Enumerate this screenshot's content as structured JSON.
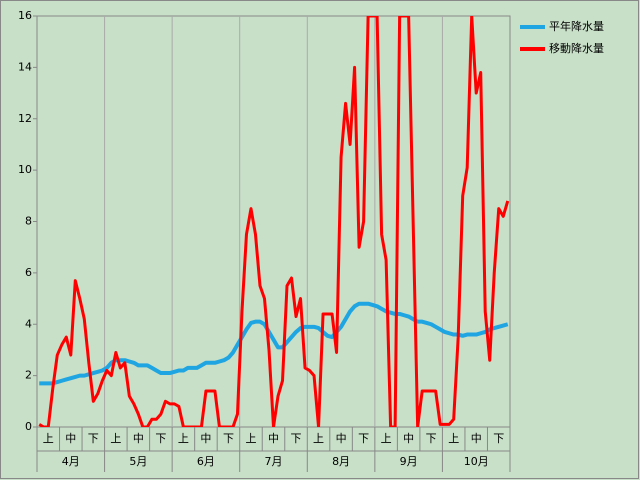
{
  "chart_data": {
    "type": "line",
    "categories": [
      null,
      null,
      "上",
      null,
      null,
      null,
      null,
      "中",
      null,
      null,
      null,
      null,
      "下",
      null,
      null,
      null,
      null,
      "上",
      null,
      null,
      null,
      null,
      "中",
      null,
      null,
      null,
      null,
      "下",
      null,
      null,
      null,
      null,
      "上",
      null,
      null,
      null,
      null,
      "中",
      null,
      null,
      null,
      null,
      "下",
      null,
      null,
      null,
      null,
      "上",
      null,
      null,
      null,
      null,
      "中",
      null,
      null,
      null,
      null,
      "下",
      null,
      null,
      null,
      null,
      "上",
      null,
      null,
      null,
      null,
      "中",
      null,
      null,
      null,
      null,
      "下",
      null,
      null,
      null,
      null,
      "上",
      null,
      null,
      null,
      null,
      "中",
      null,
      null,
      null,
      null,
      "下",
      null,
      null,
      null,
      null,
      "上",
      null,
      null,
      null,
      null,
      "中",
      null,
      null,
      null,
      null,
      "下",
      null,
      null
    ],
    "months": [
      "4月",
      "5月",
      "6月",
      "7月",
      "8月",
      "9月",
      "10月"
    ],
    "series": [
      {
        "name": "平年降水量",
        "color": "#1ea5e2",
        "values": [
          1.7,
          1.7,
          1.7,
          1.7,
          1.75,
          1.8,
          1.85,
          1.9,
          1.95,
          2.0,
          2.0,
          2.05,
          2.1,
          2.15,
          2.2,
          2.3,
          2.5,
          2.6,
          2.6,
          2.6,
          2.55,
          2.5,
          2.4,
          2.4,
          2.4,
          2.3,
          2.2,
          2.1,
          2.1,
          2.1,
          2.15,
          2.2,
          2.2,
          2.3,
          2.3,
          2.3,
          2.4,
          2.5,
          2.5,
          2.5,
          2.55,
          2.6,
          2.7,
          2.9,
          3.2,
          3.5,
          3.8,
          4.05,
          4.1,
          4.1,
          4.0,
          3.7,
          3.4,
          3.1,
          3.1,
          3.3,
          3.5,
          3.7,
          3.85,
          3.9,
          3.9,
          3.9,
          3.85,
          3.7,
          3.55,
          3.5,
          3.7,
          3.9,
          4.2,
          4.5,
          4.7,
          4.8,
          4.8,
          4.8,
          4.75,
          4.7,
          4.6,
          4.5,
          4.45,
          4.4,
          4.4,
          4.35,
          4.3,
          4.2,
          4.1,
          4.1,
          4.05,
          4.0,
          3.9,
          3.8,
          3.7,
          3.65,
          3.6,
          3.6,
          3.55,
          3.6,
          3.6,
          3.6,
          3.65,
          3.7,
          3.8,
          3.85,
          3.9,
          3.95,
          4.0
        ]
      },
      {
        "name": "移動降水量",
        "color": "#ff0000",
        "values": [
          0.1,
          0,
          0,
          1.5,
          2.8,
          3.2,
          3.5,
          2.8,
          5.7,
          5.0,
          4.2,
          2.5,
          1.0,
          1.3,
          1.8,
          2.2,
          2.0,
          2.9,
          2.3,
          2.5,
          1.2,
          0.9,
          0.5,
          0,
          0,
          0.3,
          0.3,
          0.5,
          1.0,
          0.9,
          0.9,
          0.8,
          0,
          0,
          0,
          0,
          0,
          1.4,
          1.4,
          1.4,
          0,
          0,
          0,
          0,
          0.5,
          4.5,
          7.5,
          8.5,
          7.5,
          5.5,
          5.0,
          3.0,
          0,
          1.2,
          1.8,
          5.5,
          5.8,
          4.3,
          5.0,
          2.3,
          2.2,
          2.0,
          0,
          4.4,
          4.4,
          4.4,
          2.9,
          10.5,
          12.6,
          11.0,
          14.0,
          7.0,
          8.0,
          16,
          16,
          16,
          7.5,
          6.5,
          0,
          0,
          16,
          16,
          16,
          8.0,
          0,
          1.4,
          1.4,
          1.4,
          1.4,
          0.1,
          0.1,
          0.1,
          0.3,
          3.5,
          9.0,
          10.1,
          16,
          13.0,
          13.8,
          4.5,
          2.6,
          6.0,
          8.5,
          8.2,
          8.8
        ]
      }
    ],
    "ylim": [
      0,
      16
    ],
    "yticks": [
      0,
      2,
      4,
      6,
      8,
      10,
      12,
      14,
      16
    ],
    "legend": "top-right"
  }
}
